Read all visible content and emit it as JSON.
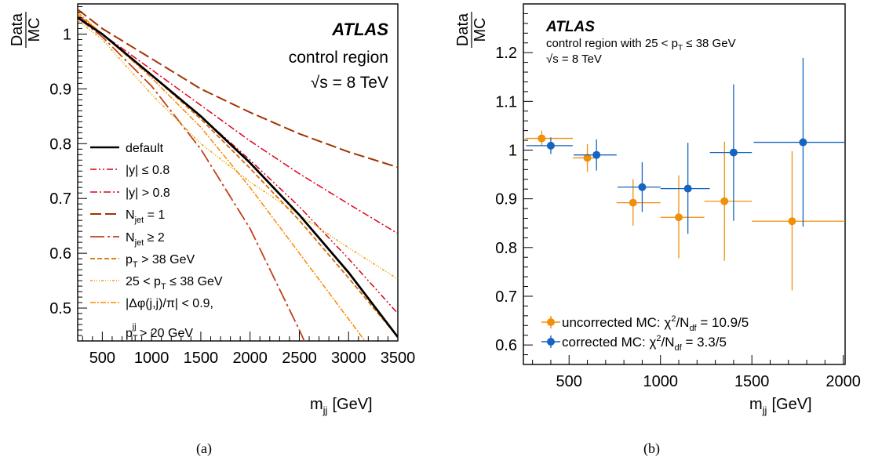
{
  "captions": {
    "a": "(a)",
    "b": "(b)"
  },
  "chart_data": [
    {
      "type": "line",
      "panel": "a",
      "title": "",
      "ylabel_num": "Data",
      "ylabel_den": "MC",
      "xlabel": "m_jj [GeV]",
      "xlabel_main": "m",
      "xlabel_sub": "jj",
      "xlabel_unit": "[GeV]",
      "xlim": [
        250,
        3500
      ],
      "ylim": [
        0.44,
        1.055
      ],
      "xticks": [
        500,
        1000,
        1500,
        2000,
        2500,
        3000,
        3500
      ],
      "yticks": [
        0.5,
        0.6,
        0.7,
        0.8,
        0.9,
        1
      ],
      "yticklabels": [
        "0.5",
        "0.6",
        "0.7",
        "0.8",
        "0.9",
        "1"
      ],
      "annotations": {
        "atlas": "ATLAS",
        "region": "control region",
        "energy_sqrt": "√s",
        "energy_rest": " = 8 TeV"
      },
      "grid": false,
      "legend_position": "left",
      "series": [
        {
          "name": "default",
          "color": "#000000",
          "dash": "solid",
          "width": 2.6,
          "x": [
            250,
            500,
            1000,
            1500,
            2000,
            2500,
            3000,
            3500
          ],
          "y": [
            1.03,
            1.0,
            0.925,
            0.85,
            0.765,
            0.67,
            0.565,
            0.447
          ]
        },
        {
          "name": "|y| ≤ 0.8",
          "color": "#d9001b",
          "dash": "8,3,2,3,2,3",
          "width": 1.5,
          "x": [
            250,
            500,
            1000,
            1500,
            2000,
            2500,
            3000,
            3500
          ],
          "y": [
            1.03,
            1.0,
            0.925,
            0.85,
            0.77,
            0.685,
            0.59,
            0.49
          ]
        },
        {
          "name": "|y| > 0.8",
          "color": "#e0001e",
          "dash": "9,3,2,3",
          "width": 1.5,
          "x": [
            250,
            500,
            1000,
            1500,
            2000,
            2500,
            3000,
            3500
          ],
          "y": [
            1.035,
            1.0,
            0.935,
            0.87,
            0.805,
            0.745,
            0.69,
            0.636
          ]
        },
        {
          "name": "N_jet = 1",
          "color": "#a33300",
          "dash": "14,5",
          "width": 2,
          "x": [
            250,
            500,
            1000,
            1500,
            2000,
            2500,
            3000,
            3500
          ],
          "y": [
            1.045,
            1.01,
            0.955,
            0.9,
            0.857,
            0.818,
            0.785,
            0.757
          ]
        },
        {
          "name": "N_jet ≥ 2",
          "color": "#c0401a",
          "dash": "18,4,3,4",
          "width": 1.8,
          "x": [
            250,
            500,
            1000,
            1500,
            2000,
            2500,
            2600
          ],
          "y": [
            1.03,
            0.995,
            0.905,
            0.79,
            0.645,
            0.46,
            0.42
          ]
        },
        {
          "name": "p_T > 38 GeV",
          "color": "#d96a00",
          "dash": "6,3",
          "width": 1.8,
          "x": [
            250,
            500,
            1000,
            1500,
            2000,
            2500,
            3000,
            3500
          ],
          "y": [
            1.035,
            1.0,
            0.925,
            0.845,
            0.755,
            0.66,
            0.555,
            0.447
          ]
        },
        {
          "name": "25 < p_T ≤ 38 GeV",
          "color": "#e8a400",
          "dash": "3,2,1,2,1,2,1,2",
          "width": 1.5,
          "x": [
            250,
            500,
            1000,
            1500,
            2000,
            2500,
            3000,
            3500
          ],
          "y": [
            1.025,
            0.99,
            0.89,
            0.8,
            0.73,
            0.67,
            0.61,
            0.553
          ]
        },
        {
          "name": "|Δφ(j,j)/π| < 0.9,",
          "name2": "p_T^jj > 20 GeV",
          "color": "#ff8800",
          "dash": "7,2,2,2",
          "width": 1.5,
          "x": [
            250,
            500,
            1000,
            1500,
            2000,
            2500,
            3000,
            3250
          ],
          "y": [
            1.04,
            1.0,
            0.92,
            0.83,
            0.72,
            0.6,
            0.48,
            0.42
          ]
        }
      ]
    },
    {
      "type": "scatter",
      "panel": "b",
      "title": "",
      "ylabel_num": "Data",
      "ylabel_den": "MC",
      "xlabel": "m_jj [GeV]",
      "xlabel_main": "m",
      "xlabel_sub": "jj",
      "xlabel_unit": "[GeV]",
      "xlim": [
        250,
        2010
      ],
      "ylim": [
        0.56,
        1.3
      ],
      "xticks": [
        500,
        1000,
        1500,
        2000
      ],
      "yticks": [
        0.6,
        0.7,
        0.8,
        0.9,
        1,
        1.1,
        1.2
      ],
      "yticklabels": [
        "0.6",
        "0.7",
        "0.8",
        "0.9",
        "1",
        "1.1",
        "1.2"
      ],
      "annotations": {
        "atlas": "ATLAS",
        "region_pre": "control region with 25 < p",
        "region_sub": "T",
        "region_post": " ≤ 38 GeV",
        "energy_sqrt": "√s",
        "energy_rest": " = 8 TeV"
      },
      "grid": false,
      "legend_position": "bottom-left",
      "series": [
        {
          "name": "uncorrected MC:  χ²/N_df = 10.9/5",
          "legend_pre": "uncorrected MC:  χ",
          "legend_sup": "2",
          "legend_mid": "/N",
          "legend_sub": "df",
          "legend_post": " = 10.9/5",
          "color": "#f0900a",
          "points": [
            {
              "x": 350,
              "xlo": 260,
              "xhi": 520,
              "y": 1.024,
              "ylo": 1.008,
              "yhi": 1.04
            },
            {
              "x": 600,
              "xlo": 520,
              "xhi": 640,
              "y": 0.984,
              "ylo": 0.955,
              "yhi": 1.012
            },
            {
              "x": 850,
              "xlo": 760,
              "xhi": 1000,
              "y": 0.892,
              "ylo": 0.845,
              "yhi": 0.94
            },
            {
              "x": 1100,
              "xlo": 1000,
              "xhi": 1240,
              "y": 0.862,
              "ylo": 0.778,
              "yhi": 0.948
            },
            {
              "x": 1350,
              "xlo": 1240,
              "xhi": 1500,
              "y": 0.895,
              "ylo": 0.773,
              "yhi": 1.017
            },
            {
              "x": 1720,
              "xlo": 1500,
              "xhi": 2010,
              "y": 0.854,
              "ylo": 0.712,
              "yhi": 0.998
            }
          ]
        },
        {
          "name": "corrected MC:  χ²/N_df = 3.3/5",
          "legend_pre": "corrected MC:  χ",
          "legend_sup": "2",
          "legend_mid": "/N",
          "legend_sub": "df",
          "legend_post": " = 3.3/5",
          "color": "#1565c0",
          "points": [
            {
              "x": 400,
              "xlo": 265,
              "xhi": 520,
              "y": 1.009,
              "ylo": 0.992,
              "yhi": 1.026
            },
            {
              "x": 650,
              "xlo": 525,
              "xhi": 760,
              "y": 0.99,
              "ylo": 0.958,
              "yhi": 1.022
            },
            {
              "x": 900,
              "xlo": 765,
              "xhi": 1000,
              "y": 0.924,
              "ylo": 0.873,
              "yhi": 0.975
            },
            {
              "x": 1150,
              "xlo": 1000,
              "xhi": 1270,
              "y": 0.921,
              "ylo": 0.828,
              "yhi": 1.015
            },
            {
              "x": 1400,
              "xlo": 1270,
              "xhi": 1500,
              "y": 0.995,
              "ylo": 0.855,
              "yhi": 1.135
            },
            {
              "x": 1780,
              "xlo": 1510,
              "xhi": 2010,
              "y": 1.016,
              "ylo": 0.843,
              "yhi": 1.189
            }
          ]
        }
      ]
    }
  ]
}
